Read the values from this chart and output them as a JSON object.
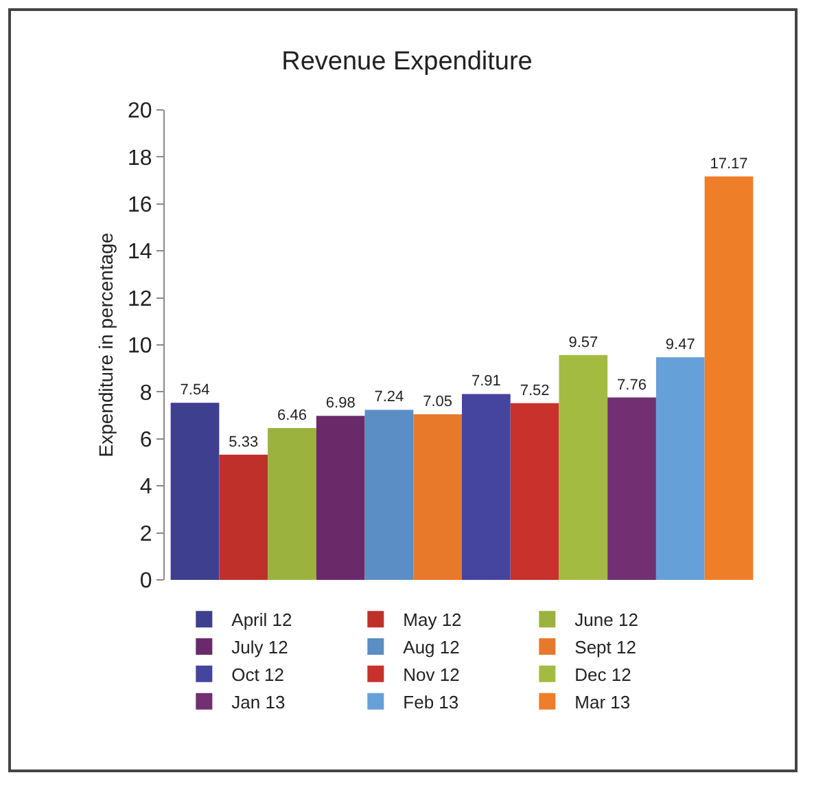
{
  "chart_data": {
    "type": "bar",
    "title": "Revenue Expenditure",
    "ylabel": "Expenditure in percentage",
    "categories": [
      null
    ],
    "series": [
      {
        "name": "April 12",
        "color": "#3f3f8f",
        "values": [
          7.54
        ]
      },
      {
        "name": "May 12",
        "color": "#c0302b",
        "values": [
          5.33
        ]
      },
      {
        "name": "June 12",
        "color": "#9bb23f",
        "values": [
          6.46
        ]
      },
      {
        "name": "July 12",
        "color": "#6a2a6a",
        "values": [
          6.98
        ]
      },
      {
        "name": "Aug 12",
        "color": "#5b8ec4",
        "values": [
          7.24
        ]
      },
      {
        "name": "Sept 12",
        "color": "#e8782a",
        "values": [
          7.05
        ]
      },
      {
        "name": "Oct 12",
        "color": "#4545a0",
        "values": [
          7.91
        ]
      },
      {
        "name": "Nov 12",
        "color": "#c8312c",
        "values": [
          7.52
        ]
      },
      {
        "name": "Dec 12",
        "color": "#a3bb40",
        "values": [
          9.57
        ]
      },
      {
        "name": "Jan 13",
        "color": "#722f72",
        "values": [
          7.76
        ]
      },
      {
        "name": "Feb 13",
        "color": "#66a0d8",
        "values": [
          9.47
        ]
      },
      {
        "name": "Mar 13",
        "color": "#ee7e28",
        "values": [
          17.17
        ]
      }
    ],
    "ylim": [
      0,
      20
    ],
    "yticks": [
      0,
      2,
      4,
      6,
      8,
      10,
      12,
      14,
      16,
      18,
      20
    ],
    "grid": false,
    "legend": "bottom",
    "tick_labels": "y",
    "data_labels": true
  }
}
